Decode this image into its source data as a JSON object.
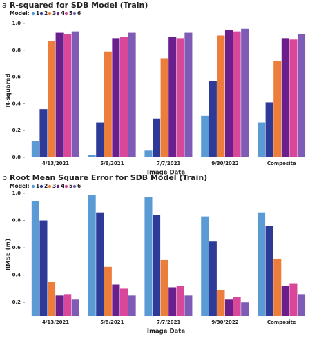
{
  "chart_data": [
    {
      "type": "bar",
      "panel": "a",
      "title": "R-squared for SDB Model (Train)",
      "legend_title": "Model:",
      "x_label": "Image Date",
      "y_label": "R-squared",
      "categories": [
        "4/13/2021",
        "5/8/2021",
        "7/7/2021",
        "9/30/2022",
        "Composite"
      ],
      "series": [
        {
          "name": "1",
          "color": "#5b9bd5",
          "values": [
            0.12,
            0.02,
            0.05,
            0.31,
            0.26
          ]
        },
        {
          "name": "2",
          "color": "#2e3a97",
          "values": [
            0.36,
            0.26,
            0.29,
            0.57,
            0.41
          ]
        },
        {
          "name": "3",
          "color": "#ed7d3a",
          "values": [
            0.87,
            0.79,
            0.74,
            0.91,
            0.72
          ]
        },
        {
          "name": "4",
          "color": "#6b1f8c",
          "values": [
            0.93,
            0.89,
            0.9,
            0.95,
            0.89
          ]
        },
        {
          "name": "5",
          "color": "#d9479a",
          "values": [
            0.92,
            0.9,
            0.89,
            0.94,
            0.88
          ]
        },
        {
          "name": "6",
          "color": "#7e5bb5",
          "values": [
            0.94,
            0.93,
            0.93,
            0.96,
            0.92
          ]
        }
      ],
      "ylim": [
        0,
        1.0
      ],
      "yticks": [
        {
          "value": 0,
          "label": "0.0"
        },
        0.2,
        0.4,
        0.6,
        0.8,
        {
          "value": 1,
          "label": "1.0"
        }
      ]
    },
    {
      "type": "bar",
      "panel": "b",
      "title": "Root Mean Square Error for SDB Model (Train)",
      "legend_title": "Model:",
      "x_label": "Image Date",
      "y_label": "RMSE (m)",
      "categories": [
        "4/13/2021",
        "5/8/2021",
        "7/7/2021",
        "9/30/2022",
        "Composite"
      ],
      "series": [
        {
          "name": "1",
          "color": "#5b9bd5",
          "values": [
            0.94,
            0.99,
            0.97,
            0.83,
            0.86
          ]
        },
        {
          "name": "2",
          "color": "#2e3a97",
          "values": [
            0.8,
            0.86,
            0.84,
            0.65,
            0.76
          ]
        },
        {
          "name": "3",
          "color": "#ed7d3a",
          "values": [
            0.35,
            0.46,
            0.51,
            0.29,
            0.52
          ]
        },
        {
          "name": "4",
          "color": "#6b1f8c",
          "values": [
            0.25,
            0.33,
            0.31,
            0.22,
            0.32
          ]
        },
        {
          "name": "5",
          "color": "#d9479a",
          "values": [
            0.26,
            0.3,
            0.32,
            0.24,
            0.34
          ]
        },
        {
          "name": "6",
          "color": "#7e5bb5",
          "values": [
            0.22,
            0.25,
            0.25,
            0.2,
            0.26
          ]
        }
      ],
      "ylim": [
        0.1,
        1.0
      ],
      "yticks": [
        0.2,
        0.4,
        0.6,
        0.8,
        {
          "value": 1,
          "label": "1.0"
        }
      ]
    }
  ]
}
